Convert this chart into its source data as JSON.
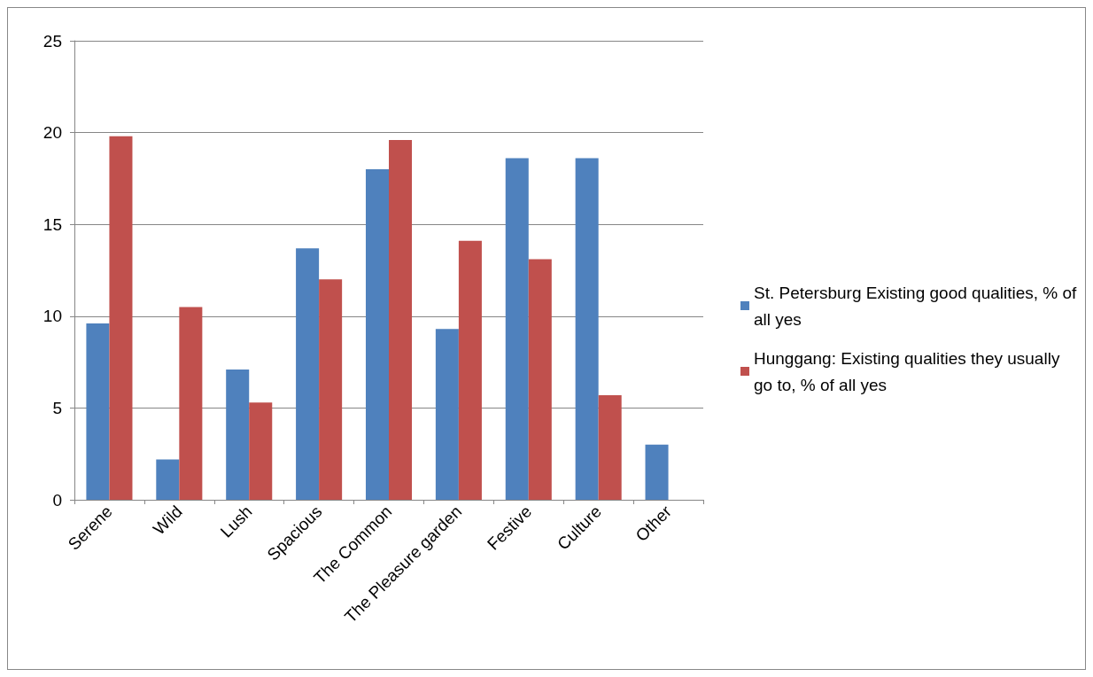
{
  "chart_data": {
    "type": "bar",
    "categories": [
      "Serene",
      "Wild",
      "Lush",
      "Spacious",
      "The Common",
      "The Pleasure garden",
      "Festive",
      "Culture",
      "Other"
    ],
    "series": [
      {
        "name": "St. Petersburg Existing good qualities, % of all yes",
        "color": "#4f81bd",
        "values": [
          9.6,
          2.2,
          7.1,
          13.7,
          18.0,
          9.3,
          18.6,
          18.6,
          3.0
        ]
      },
      {
        "name": "Hunggang: Existing qualities they usually go to, % of all yes",
        "color": "#c0504d",
        "values": [
          19.8,
          10.5,
          5.3,
          12.0,
          19.6,
          14.1,
          13.1,
          5.7,
          0
        ]
      }
    ],
    "ylim": [
      0,
      25
    ],
    "yticks": [
      0,
      5,
      10,
      15,
      20,
      25
    ],
    "grid": "y",
    "legend": "right"
  }
}
